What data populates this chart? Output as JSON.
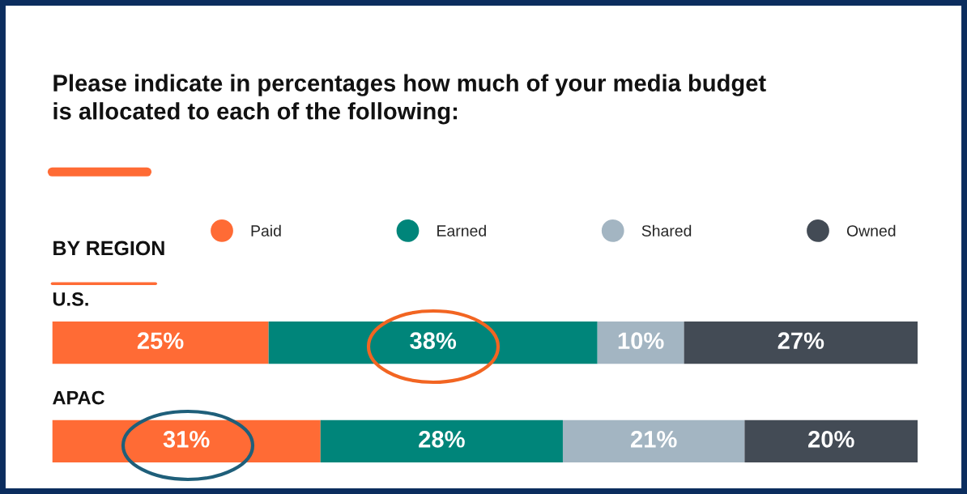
{
  "chart_data": {
    "type": "bar",
    "orientation": "horizontal",
    "stacked": true,
    "title": "Please indicate in percentages how much of your media budget is allocated to each of the following:",
    "annotations": [
      "BY REGION"
    ],
    "categories": [
      "U.S.",
      "APAC"
    ],
    "series": [
      {
        "name": "Paid",
        "color": "#ff6b35",
        "values": [
          25,
          31
        ],
        "value_labels": [
          "25%",
          "31%"
        ]
      },
      {
        "name": "Earned",
        "color": "#00857a",
        "values": [
          38,
          28
        ],
        "value_labels": [
          "38%",
          "28%"
        ]
      },
      {
        "name": "Shared",
        "color": "#a3b5c2",
        "values": [
          10,
          21
        ],
        "value_labels": [
          "10%",
          "21%"
        ]
      },
      {
        "name": "Owned",
        "color": "#434b55",
        "values": [
          27,
          20
        ],
        "value_labels": [
          "27%",
          "20%"
        ]
      }
    ],
    "xlim": [
      0,
      100
    ],
    "tick_labels": false,
    "legend": "top"
  }
}
